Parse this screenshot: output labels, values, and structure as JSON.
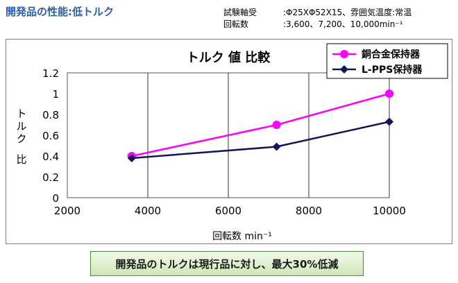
{
  "page_title": "開発品の性能:低トルク",
  "conditions": [
    {
      "label": "試験軸受",
      "value": ":Φ25XΦ52X15、雰囲気温度:常温"
    },
    {
      "label": "回転数",
      "value": ":3,600、7,200、10,000min⁻¹"
    }
  ],
  "summary": "開発品のトルクは現行品に対し、最大30%低減",
  "chart_data": {
    "type": "line",
    "title": "トルク 値 比較",
    "xlabel": "回転数 min⁻¹",
    "ylabel": "トルク 比",
    "xlim": [
      2000,
      10000
    ],
    "ylim": [
      0,
      1.2
    ],
    "x_ticks": [
      2000,
      4000,
      6000,
      8000,
      10000
    ],
    "y_ticks": [
      0,
      0.2,
      0.4,
      0.6,
      0.8,
      1,
      1.2
    ],
    "grid": "vertical",
    "legend_position": "top-right",
    "x": [
      3600,
      7200,
      10000
    ],
    "series": [
      {
        "name": "銅合金保持器",
        "values": [
          0.4,
          0.7,
          1.0
        ],
        "color": "#ff00ff",
        "marker": "circle"
      },
      {
        "name": "L-PPS保持器",
        "values": [
          0.38,
          0.49,
          0.73
        ],
        "color": "#14145a",
        "marker": "diamond"
      }
    ]
  }
}
